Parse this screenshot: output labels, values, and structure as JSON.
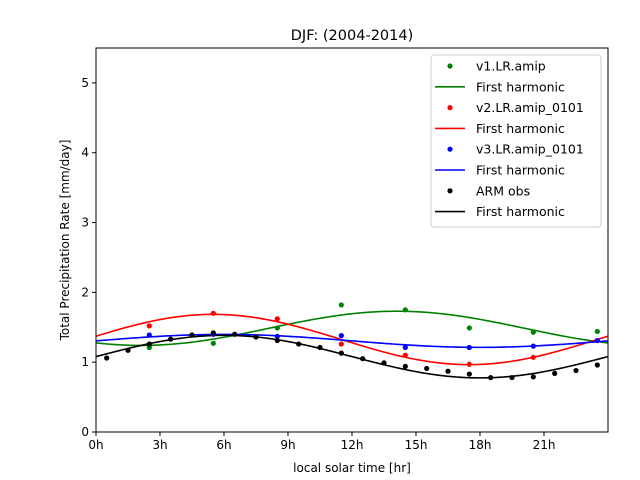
{
  "chart_data": {
    "type": "scatter",
    "title": "DJF: (2004-2014)",
    "xlabel": "local solar time [hr]",
    "ylabel": "Total Precipitation Rate [mm/day]",
    "xlim": [
      0,
      24
    ],
    "ylim": [
      0,
      5.5
    ],
    "xticks": [
      0,
      3,
      6,
      9,
      12,
      15,
      18,
      21
    ],
    "xtick_labels": [
      "0h",
      "3h",
      "6h",
      "9h",
      "12h",
      "15h",
      "18h",
      "21h"
    ],
    "yticks": [
      0,
      1,
      2,
      3,
      4,
      5
    ],
    "ytick_labels": [
      "0",
      "1",
      "2",
      "3",
      "4",
      "5"
    ],
    "grid": false,
    "legend_position": "top-right",
    "series": [
      {
        "name": "v1.LR.amip",
        "color": "#008000",
        "x": [
          2.5,
          5.5,
          8.5,
          11.5,
          14.5,
          17.5,
          20.5,
          23.5
        ],
        "y": [
          1.21,
          1.27,
          1.49,
          1.82,
          1.75,
          1.49,
          1.43,
          1.44
        ],
        "fit_name": "First harmonic",
        "fit": {
          "mean": 1.485,
          "amplitude": 0.245,
          "peak_hour": 14.1
        }
      },
      {
        "name": "v2.LR.amip_0101",
        "color": "#ff0000",
        "x": [
          2.5,
          5.5,
          8.5,
          11.5,
          14.5,
          17.5,
          20.5,
          23.5
        ],
        "y": [
          1.52,
          1.7,
          1.62,
          1.26,
          1.1,
          0.97,
          1.07,
          1.31
        ],
        "fit_name": "First harmonic",
        "fit": {
          "mean": 1.325,
          "amplitude": 0.36,
          "peak_hour": 5.5
        }
      },
      {
        "name": "v3.LR.amip_0101",
        "color": "#0000ff",
        "x": [
          2.5,
          5.5,
          8.5,
          11.5,
          14.5,
          17.5,
          20.5,
          23.5
        ],
        "y": [
          1.39,
          1.4,
          1.37,
          1.38,
          1.21,
          1.21,
          1.23,
          1.31
        ],
        "fit_name": "First harmonic",
        "fit": {
          "mean": 1.305,
          "amplitude": 0.093,
          "peak_hour": 6.0
        }
      },
      {
        "name": "ARM obs",
        "color": "#000000",
        "x": [
          0.5,
          1.5,
          2.5,
          3.5,
          4.5,
          5.5,
          6.5,
          7.5,
          8.5,
          9.5,
          10.5,
          11.5,
          12.5,
          13.5,
          14.5,
          15.5,
          16.5,
          17.5,
          18.5,
          19.5,
          20.5,
          21.5,
          22.5,
          23.5
        ],
        "y": [
          1.06,
          1.17,
          1.26,
          1.33,
          1.39,
          1.42,
          1.4,
          1.36,
          1.31,
          1.26,
          1.21,
          1.13,
          1.05,
          0.99,
          0.94,
          0.91,
          0.87,
          0.83,
          0.78,
          0.78,
          0.79,
          0.84,
          0.88,
          0.96
        ],
        "fit_name": "First harmonic",
        "fit": {
          "mean": 1.08,
          "amplitude": 0.305,
          "peak_hour": 6.0
        }
      }
    ]
  }
}
